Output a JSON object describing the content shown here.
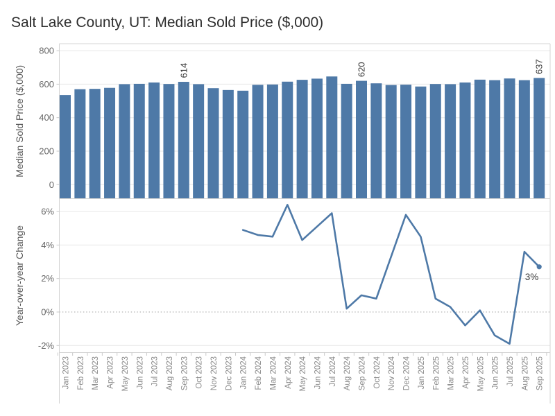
{
  "title": "Salt Lake County, UT: Median Sold Price ($,000)",
  "colors": {
    "bar": "#4e79a7",
    "line": "#4e79a7",
    "title_text": "#2e2e2e",
    "axis_title": "#555555",
    "tick_label": "#666666",
    "month_label": "#8c8c8c",
    "mark_label": "#3c3c3c",
    "grid": "#e7e7e7",
    "zero_dotted": "#a3a3a3",
    "border": "#d4d4d4",
    "tick_mark": "#c9c9c9"
  },
  "chart_data": [
    {
      "panel": "median-price",
      "type": "bar",
      "title": "",
      "xlabel": "",
      "ylabel": "Median Sold Price ($,000)",
      "categories": [
        "Jan 2023",
        "Feb 2023",
        "Mar 2023",
        "Apr 2023",
        "May 2023",
        "Jun 2023",
        "Jul 2023",
        "Aug 2023",
        "Sep 2023",
        "Oct 2023",
        "Nov 2023",
        "Dec 2023",
        "Jan 2024",
        "Feb 2024",
        "Mar 2024",
        "Apr 2024",
        "May 2024",
        "Jun 2024",
        "Jul 2024",
        "Aug 2024",
        "Sep 2024",
        "Oct 2024",
        "Nov 2024",
        "Dec 2024",
        "Jan 2025",
        "Feb 2025",
        "Mar 2025",
        "Apr 2025",
        "May 2025",
        "Jun 2025",
        "Jul 2025",
        "Aug 2025",
        "Sep 2025"
      ],
      "values": [
        535,
        570,
        572,
        578,
        600,
        602,
        610,
        601,
        614,
        600,
        576,
        565,
        561,
        596,
        598,
        615,
        626,
        633,
        646,
        602,
        620,
        605,
        595,
        597,
        586,
        601,
        600,
        610,
        627,
        624,
        634,
        624,
        637
      ],
      "yticks": [
        {
          "value": 0,
          "label": "0"
        },
        {
          "value": 200,
          "label": "200"
        },
        {
          "value": 400,
          "label": "400"
        },
        {
          "value": 600,
          "label": "600"
        },
        {
          "value": 800,
          "label": "800"
        }
      ],
      "ylim": [
        -85,
        845
      ],
      "grid": true,
      "legend": false,
      "bar_labels": [
        {
          "category": "Sep 2023",
          "text": "614"
        },
        {
          "category": "Sep 2024",
          "text": "620"
        },
        {
          "category": "Sep 2025",
          "text": "637"
        }
      ]
    },
    {
      "panel": "yoy",
      "type": "line",
      "title": "",
      "xlabel": "",
      "ylabel": "Year-over-year Change",
      "x_start_category": "Jan 2024",
      "values": [
        4.9,
        4.6,
        4.5,
        6.4,
        4.3,
        5.1,
        5.9,
        0.2,
        1.0,
        0.8,
        3.3,
        5.8,
        4.5,
        0.8,
        0.3,
        -0.8,
        0.1,
        -1.4,
        -1.9,
        3.6,
        2.7
      ],
      "yticks": [
        {
          "value": -2,
          "label": "-2%"
        },
        {
          "value": 0,
          "label": "0%"
        },
        {
          "value": 2,
          "label": "2%"
        },
        {
          "value": 4,
          "label": "4%"
        },
        {
          "value": 6,
          "label": "6%"
        }
      ],
      "ylim": [
        -2.45,
        6.75
      ],
      "grid": true,
      "legend": false,
      "zero_line": "dotted",
      "end_point_marker": true,
      "end_point_label": "3%"
    }
  ]
}
